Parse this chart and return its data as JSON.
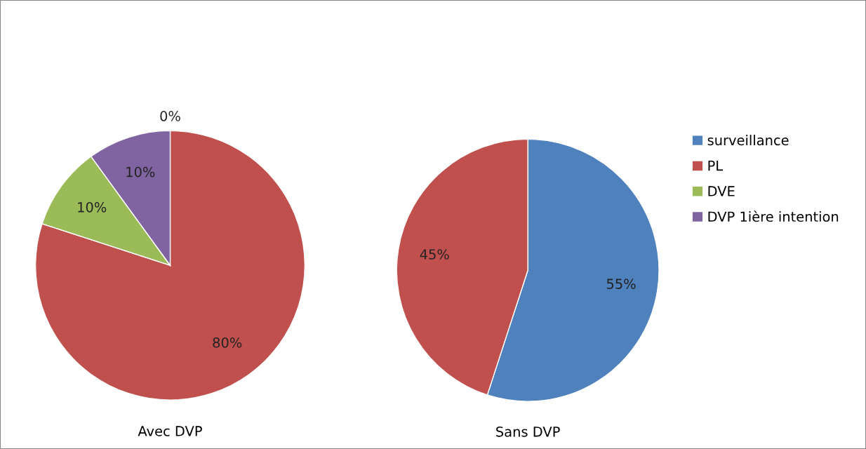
{
  "chart_data": [
    {
      "type": "pie",
      "title": "Avec DVP",
      "categories": [
        "surveillance",
        "PL",
        "DVE",
        "DVP 1ière intention"
      ],
      "values": [
        0,
        80,
        10,
        10
      ],
      "colors": [
        "#4f81bd",
        "#c0504d",
        "#9bbb59",
        "#8064a2"
      ],
      "value_labels": [
        "0%",
        "80%",
        "10%",
        "10%"
      ],
      "legend": "right"
    },
    {
      "type": "pie",
      "title": "Sans DVP",
      "categories": [
        null,
        null
      ],
      "values": [
        55,
        45
      ],
      "colors": [
        "#4f81bd",
        "#c0504d"
      ],
      "value_labels": [
        "55%",
        "45%"
      ]
    }
  ]
}
